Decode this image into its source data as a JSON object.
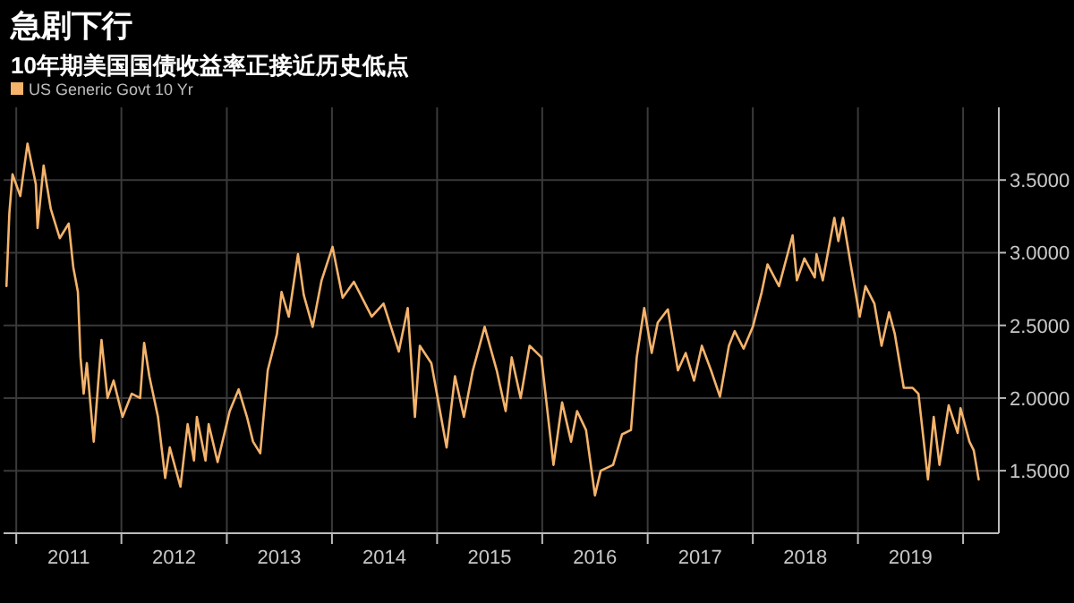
{
  "chart_data": {
    "type": "line",
    "title": "急剧下行",
    "subtitle": "10年期美国国债收益率正接近历史低点",
    "x": [
      "2010-11-28",
      "2010-12-08",
      "2010-12-19",
      "2011-01-15",
      "2011-02-09",
      "2011-03-10",
      "2011-03-16",
      "2011-04-06",
      "2011-05-01",
      "2011-06-01",
      "2011-07-02",
      "2011-07-18",
      "2011-08-03",
      "2011-08-12",
      "2011-08-23",
      "2011-09-03",
      "2011-09-27",
      "2011-10-24",
      "2011-11-14",
      "2011-12-05",
      "2012-01-05",
      "2012-02-06",
      "2012-03-06",
      "2012-03-20",
      "2012-04-07",
      "2012-05-07",
      "2012-06-01",
      "2012-06-17",
      "2012-07-24",
      "2012-08-18",
      "2012-09-09",
      "2012-09-19",
      "2012-10-19",
      "2012-10-30",
      "2012-11-30",
      "2013-01-11",
      "2013-02-11",
      "2013-03-12",
      "2013-04-02",
      "2013-04-27",
      "2013-05-23",
      "2013-06-24",
      "2013-07-10",
      "2013-08-04",
      "2013-09-05",
      "2013-09-25",
      "2013-10-26",
      "2013-11-26",
      "2014-01-03",
      "2014-02-07",
      "2014-03-18",
      "2014-05-19",
      "2014-06-29",
      "2014-08-21",
      "2014-09-21",
      "2014-10-16",
      "2014-11-02",
      "2014-12-12",
      "2015-02-03",
      "2015-03-04",
      "2015-04-04",
      "2015-05-05",
      "2015-06-15",
      "2015-07-27",
      "2015-08-27",
      "2015-09-17",
      "2015-10-18",
      "2015-11-18",
      "2015-12-29",
      "2016-02-09",
      "2016-03-10",
      "2016-04-10",
      "2016-05-01",
      "2016-06-01",
      "2016-07-02",
      "2016-07-22",
      "2016-09-03",
      "2016-10-04",
      "2016-11-04",
      "2016-11-24",
      "2016-12-20",
      "2017-01-15",
      "2017-02-05",
      "2017-03-12",
      "2017-04-16",
      "2017-05-13",
      "2017-06-11",
      "2017-07-08",
      "2017-08-09",
      "2017-09-09",
      "2017-10-10",
      "2017-10-30",
      "2017-11-30",
      "2018-01-01",
      "2018-02-01",
      "2018-02-21",
      "2018-04-02",
      "2018-05-19",
      "2018-06-03",
      "2018-06-29",
      "2018-08-04",
      "2018-08-10",
      "2018-09-01",
      "2018-10-11",
      "2018-10-25",
      "2018-11-10",
      "2018-12-06",
      "2019-01-07",
      "2019-01-27",
      "2019-02-27",
      "2019-03-24",
      "2019-04-19",
      "2019-05-09",
      "2019-06-09",
      "2019-07-10",
      "2019-07-30",
      "2019-09-01",
      "2019-09-21",
      "2019-10-11",
      "2019-11-12",
      "2019-12-13",
      "2019-12-23",
      "2020-01-23",
      "2020-02-07",
      "2020-02-24"
    ],
    "series": [
      {
        "name": "US Generic Govt 10 Yr",
        "color": "#f5b36b",
        "values": [
          2.77,
          3.27,
          3.54,
          3.39,
          3.75,
          3.47,
          3.17,
          3.6,
          3.3,
          3.1,
          3.2,
          2.9,
          2.73,
          2.28,
          2.03,
          2.24,
          1.7,
          2.4,
          2.0,
          2.12,
          1.87,
          2.03,
          2.0,
          2.38,
          2.15,
          1.87,
          1.45,
          1.66,
          1.39,
          1.82,
          1.57,
          1.87,
          1.57,
          1.82,
          1.56,
          1.91,
          2.06,
          1.87,
          1.7,
          1.62,
          2.19,
          2.44,
          2.73,
          2.56,
          2.99,
          2.71,
          2.49,
          2.81,
          3.04,
          2.69,
          2.8,
          2.56,
          2.65,
          2.32,
          2.62,
          1.87,
          2.36,
          2.24,
          1.66,
          2.15,
          1.87,
          2.19,
          2.49,
          2.19,
          1.91,
          2.28,
          2.0,
          2.36,
          2.28,
          1.54,
          1.97,
          1.7,
          1.91,
          1.78,
          1.33,
          1.5,
          1.54,
          1.75,
          1.78,
          2.28,
          2.62,
          2.31,
          2.52,
          2.61,
          2.19,
          2.31,
          2.12,
          2.36,
          2.19,
          2.01,
          2.36,
          2.46,
          2.34,
          2.49,
          2.73,
          2.92,
          2.77,
          3.12,
          2.81,
          2.96,
          2.83,
          2.99,
          2.81,
          3.24,
          3.08,
          3.24,
          2.93,
          2.56,
          2.77,
          2.65,
          2.36,
          2.59,
          2.44,
          2.07,
          2.07,
          2.03,
          1.44,
          1.87,
          1.54,
          1.95,
          1.76,
          1.93,
          1.7,
          1.64,
          1.44
        ]
      }
    ],
    "xlim": [
      "2010-11-18",
      "2020-05-04"
    ],
    "xticks": [
      {
        "value": "2011-01-01",
        "label": null
      },
      {
        "value": "2011-07-02",
        "label": "2011"
      },
      {
        "value": "2012-01-01",
        "label": null
      },
      {
        "value": "2012-07-02",
        "label": "2012"
      },
      {
        "value": "2013-01-01",
        "label": null
      },
      {
        "value": "2013-07-02",
        "label": "2013"
      },
      {
        "value": "2014-01-01",
        "label": null
      },
      {
        "value": "2014-07-02",
        "label": "2014"
      },
      {
        "value": "2015-01-01",
        "label": null
      },
      {
        "value": "2015-07-02",
        "label": "2015"
      },
      {
        "value": "2016-01-01",
        "label": null
      },
      {
        "value": "2016-07-02",
        "label": "2016"
      },
      {
        "value": "2017-01-01",
        "label": null
      },
      {
        "value": "2017-07-02",
        "label": "2017"
      },
      {
        "value": "2018-01-01",
        "label": null
      },
      {
        "value": "2018-07-02",
        "label": "2018"
      },
      {
        "value": "2019-01-01",
        "label": null
      },
      {
        "value": "2019-07-02",
        "label": "2019"
      },
      {
        "value": "2020-01-01",
        "label": null
      }
    ],
    "ylim": [
      1.07,
      4.0
    ],
    "yticks": [
      {
        "value": 1.5,
        "label": "1.5000"
      },
      {
        "value": 2.0,
        "label": "2.0000"
      },
      {
        "value": 2.5,
        "label": "2.5000"
      },
      {
        "value": 3.0,
        "label": "3.0000"
      },
      {
        "value": 3.5,
        "label": "3.5000"
      }
    ],
    "grid": true,
    "legend": "top left",
    "line_style": "solid"
  }
}
